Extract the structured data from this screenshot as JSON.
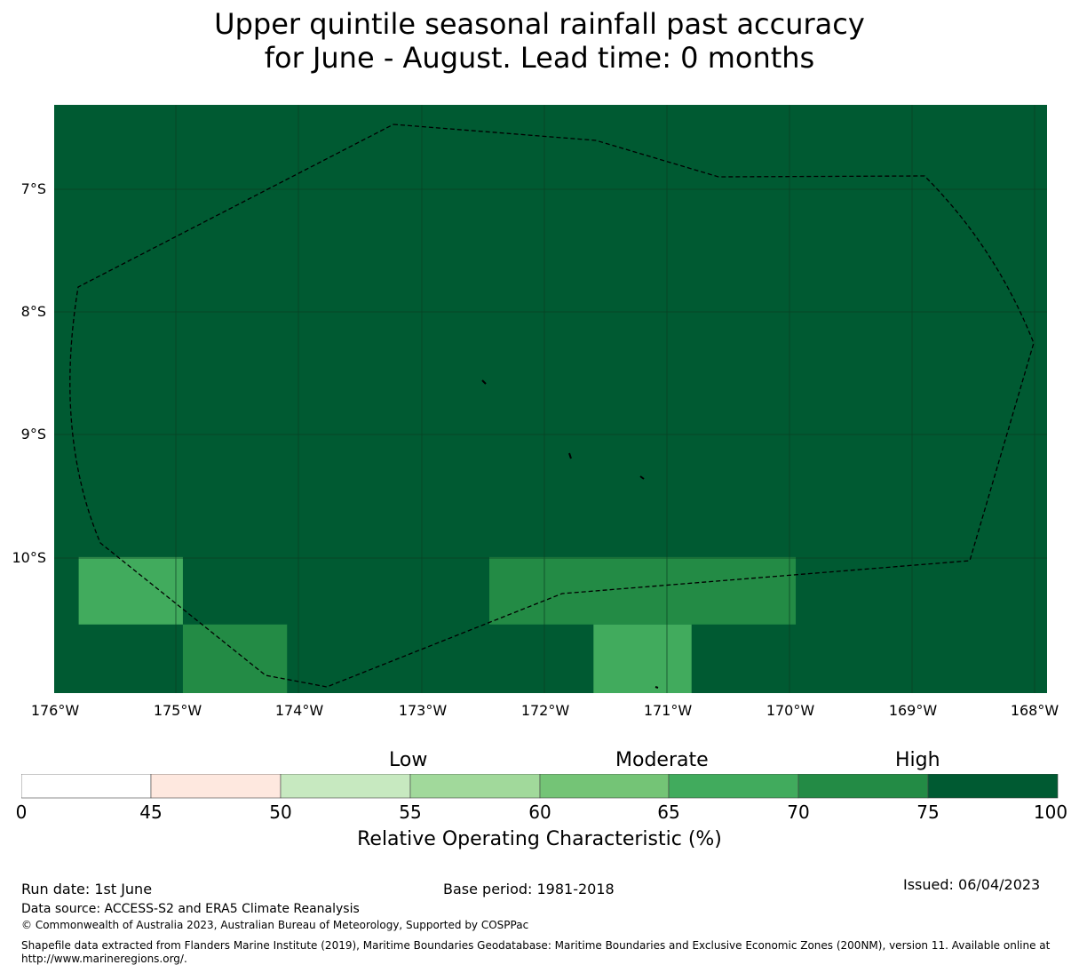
{
  "title": {
    "line1": "Upper quintile seasonal rainfall past accuracy",
    "line2": "for June - August. Lead time: 0 months"
  },
  "map": {
    "lat_labels": [
      "7°S",
      "8°S",
      "9°S",
      "10°S"
    ],
    "lon_labels": [
      "176°W",
      "175°W",
      "174°W",
      "173°W",
      "172°W",
      "171°W",
      "170°W",
      "169°W",
      "168°W"
    ],
    "background_color": "#005a32",
    "cells": [
      {
        "lon_range": [
          -175.85,
          -175.0
        ],
        "lat_range": [
          -10.55,
          -10.0
        ],
        "color": "#41ab5d"
      },
      {
        "lon_range": [
          -175.0,
          -174.15
        ],
        "lat_range": [
          -11.15,
          -10.55
        ],
        "color": "#238b45"
      },
      {
        "lon_range": [
          -172.5,
          -170.0
        ],
        "lat_range": [
          -10.55,
          -10.0
        ],
        "color": "#238b45"
      },
      {
        "lon_range": [
          -171.65,
          -170.85
        ],
        "lat_range": [
          -11.15,
          -10.55
        ],
        "color": "#41ab5d"
      }
    ]
  },
  "colorbar": {
    "category_labels": [
      "Low",
      "Moderate",
      "High"
    ],
    "ticks": [
      "0",
      "45",
      "50",
      "55",
      "60",
      "65",
      "70",
      "75",
      "100"
    ],
    "colors": [
      "#ffffff",
      "#fee8df",
      "#c7e9c0",
      "#a1d99b",
      "#74c476",
      "#41ab5d",
      "#238b45",
      "#005a32"
    ],
    "label": "Relative Operating Characteristic (%)"
  },
  "footer": {
    "run_date": "Run date: 1st June",
    "base_period": "Base period: 1981-2018",
    "issued": "Issued: 06/04/2023",
    "data_source": "Data source: ACCESS-S2 and ERA5 Climate Reanalysis",
    "copyright": "© Commonwealth of Australia 2023, Australian Bureau of Meteorology, Supported by COSPPac",
    "shapefile": "Shapefile data extracted from Flanders Marine Institute (2019), Maritime Boundaries Geodatabase: Maritime Boundaries and Exclusive Economic Zones (200NM), version 11. Available online at http://www.marineregions.org/."
  }
}
